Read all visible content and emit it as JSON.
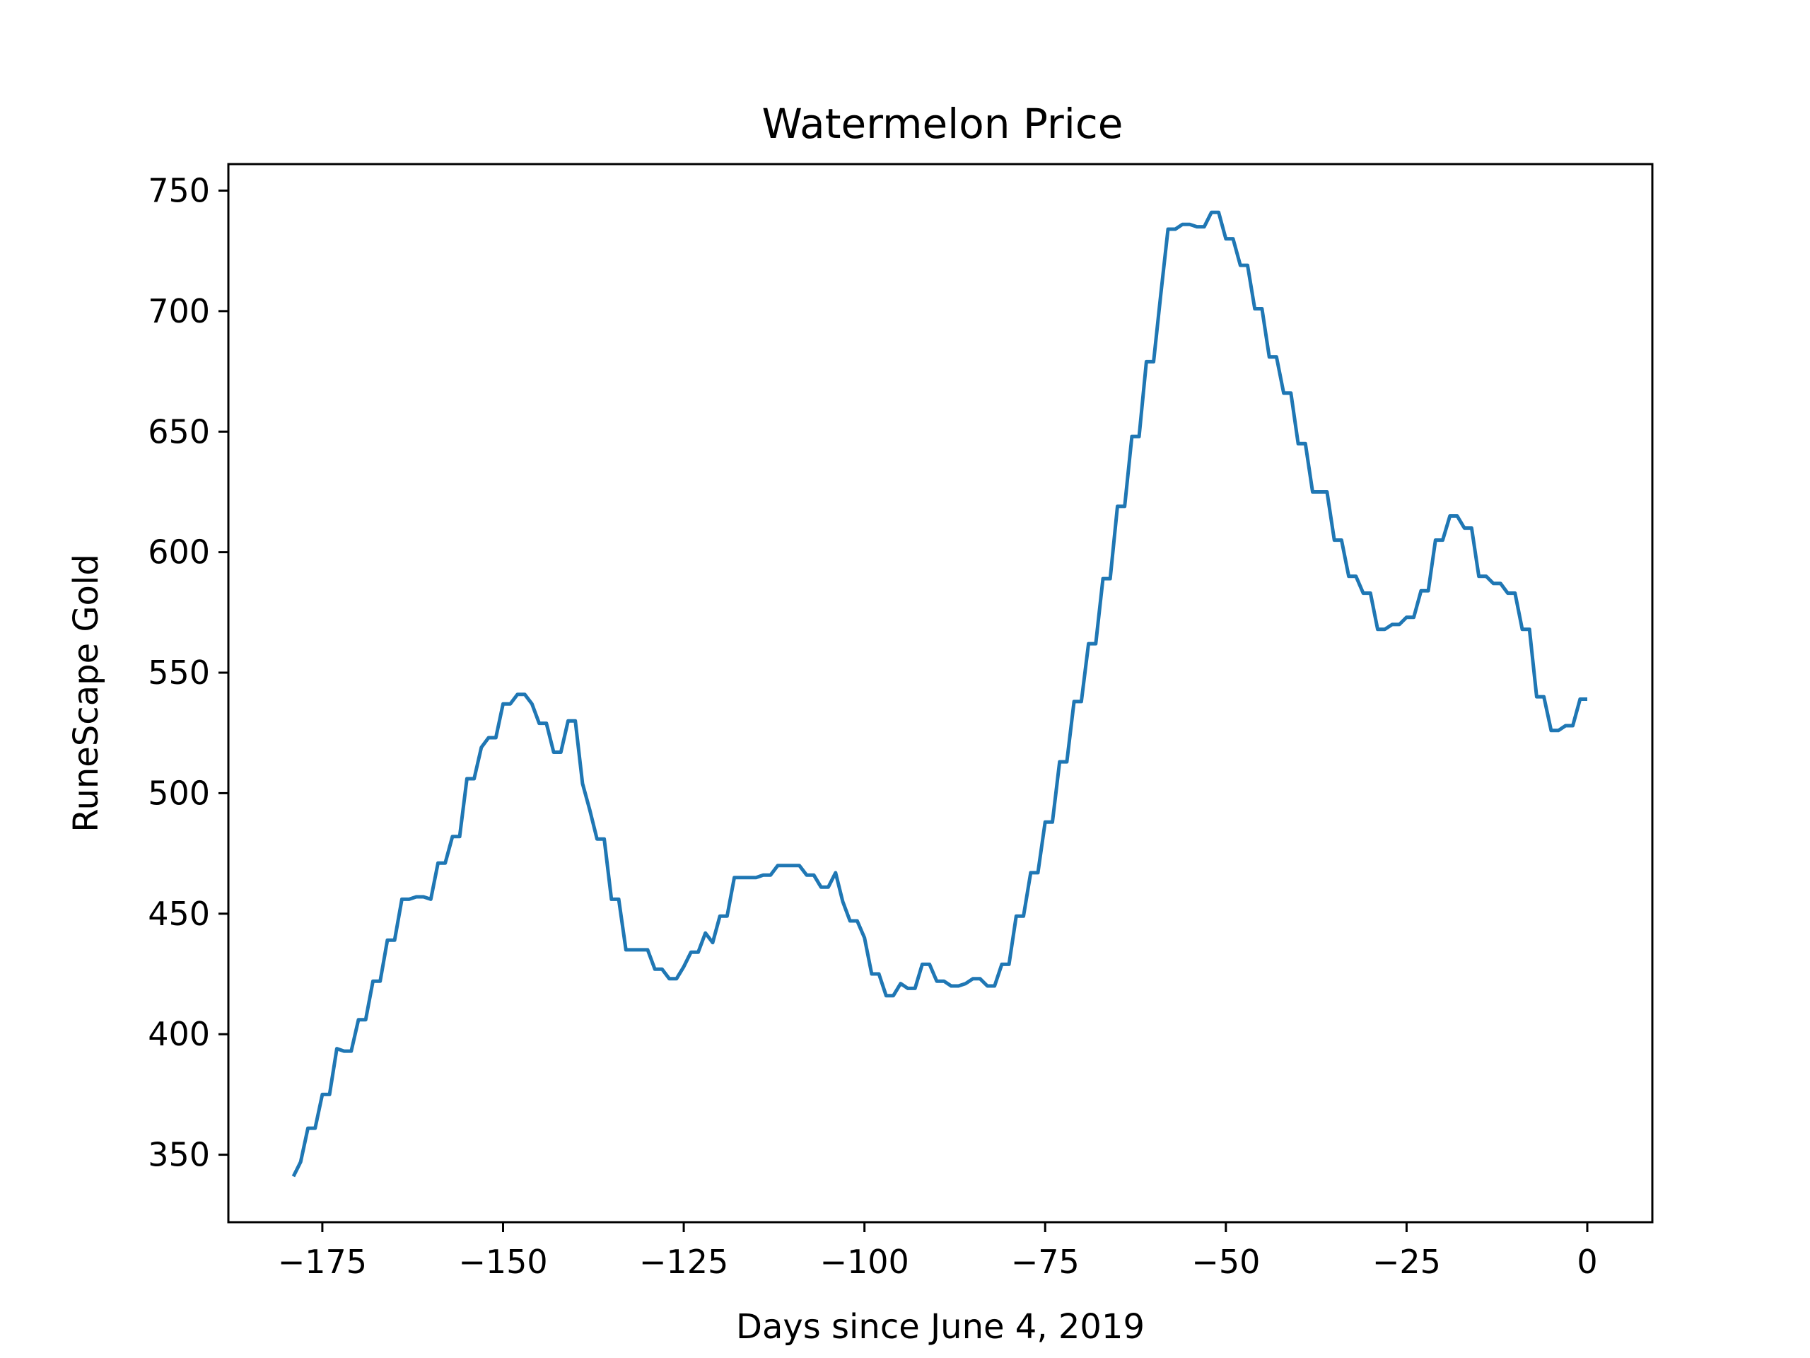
{
  "chart_data": {
    "type": "line",
    "title": "Watermelon Price",
    "xlabel": "Days since June 4, 2019",
    "ylabel": "RuneScape Gold",
    "xlim": [
      -188,
      9
    ],
    "ylim": [
      322,
      761
    ],
    "grid": false,
    "legend": "none",
    "x_ticks": [
      -175,
      -150,
      -125,
      -100,
      -75,
      -50,
      -25,
      0
    ],
    "x_tick_labels": [
      "−175",
      "−150",
      "−125",
      "−100",
      "−75",
      "−50",
      "−25",
      "0"
    ],
    "y_ticks": [
      350,
      400,
      450,
      500,
      550,
      600,
      650,
      700,
      750
    ],
    "y_tick_labels": [
      "350",
      "400",
      "450",
      "500",
      "550",
      "600",
      "650",
      "700",
      "750"
    ],
    "series": [
      {
        "color": "#1f77b4",
        "x": [
          -179,
          -178,
          -177,
          -176,
          -175,
          -174,
          -173,
          -172,
          -171,
          -170,
          -169,
          -168,
          -167,
          -166,
          -165,
          -164,
          -163,
          -162,
          -161,
          -160,
          -159,
          -158,
          -157,
          -156,
          -155,
          -154,
          -153,
          -152,
          -151,
          -150,
          -149,
          -148,
          -147,
          -146,
          -145,
          -144,
          -143,
          -142,
          -141,
          -140,
          -139,
          -138,
          -137,
          -136,
          -135,
          -134,
          -133,
          -132,
          -131,
          -130,
          -129,
          -128,
          -127,
          -126,
          -125,
          -124,
          -123,
          -122,
          -121,
          -120,
          -119,
          -118,
          -117,
          -116,
          -115,
          -114,
          -113,
          -112,
          -111,
          -110,
          -109,
          -108,
          -107,
          -106,
          -105,
          -104,
          -103,
          -102,
          -101,
          -100,
          -99,
          -98,
          -97,
          -96,
          -95,
          -94,
          -93,
          -92,
          -91,
          -90,
          -89,
          -88,
          -87,
          -86,
          -85,
          -84,
          -83,
          -82,
          -81,
          -80,
          -79,
          -78,
          -77,
          -76,
          -75,
          -74,
          -73,
          -72,
          -71,
          -70,
          -69,
          -68,
          -67,
          -66,
          -65,
          -64,
          -63,
          -62,
          -61,
          -60,
          -59,
          -58,
          -57,
          -56,
          -55,
          -54,
          -53,
          -52,
          -51,
          -50,
          -49,
          -48,
          -47,
          -46,
          -45,
          -44,
          -43,
          -42,
          -41,
          -40,
          -39,
          -38,
          -37,
          -36,
          -35,
          -34,
          -33,
          -32,
          -31,
          -30,
          -29,
          -28,
          -27,
          -26,
          -25,
          -24,
          -23,
          -22,
          -21,
          -20,
          -19,
          -18,
          -17,
          -16,
          -15,
          -14,
          -13,
          -12,
          -11,
          -10,
          -9,
          -8,
          -7,
          -6,
          -5,
          -4,
          -3,
          -2,
          -1,
          0
        ],
        "y": [
          341,
          347,
          361,
          361,
          375,
          375,
          394,
          393,
          393,
          406,
          406,
          422,
          422,
          439,
          439,
          456,
          456,
          457,
          457,
          456,
          471,
          471,
          482,
          482,
          506,
          506,
          519,
          523,
          523,
          537,
          537,
          541,
          541,
          537,
          529,
          529,
          517,
          517,
          530,
          530,
          504,
          493,
          481,
          481,
          456,
          456,
          435,
          435,
          435,
          435,
          427,
          427,
          423,
          423,
          428,
          434,
          434,
          442,
          438,
          449,
          449,
          465,
          465,
          465,
          465,
          466,
          466,
          470,
          470,
          470,
          470,
          466,
          466,
          461,
          461,
          467,
          455,
          447,
          447,
          440,
          425,
          425,
          416,
          416,
          421,
          419,
          419,
          429,
          429,
          422,
          422,
          420,
          420,
          421,
          423,
          423,
          420,
          420,
          429,
          429,
          449,
          449,
          467,
          467,
          488,
          488,
          513,
          513,
          538,
          538,
          562,
          562,
          589,
          589,
          619,
          619,
          648,
          648,
          679,
          679,
          707,
          734,
          734,
          736,
          736,
          735,
          735,
          741,
          741,
          730,
          730,
          719,
          719,
          701,
          701,
          681,
          681,
          666,
          666,
          645,
          645,
          625,
          625,
          625,
          605,
          605,
          590,
          590,
          583,
          583,
          568,
          568,
          570,
          570,
          573,
          573,
          584,
          584,
          605,
          605,
          615,
          615,
          610,
          610,
          590,
          590,
          587,
          587,
          583,
          583,
          568,
          568,
          540,
          540,
          526,
          526,
          528,
          528,
          539,
          539
        ]
      }
    ]
  }
}
